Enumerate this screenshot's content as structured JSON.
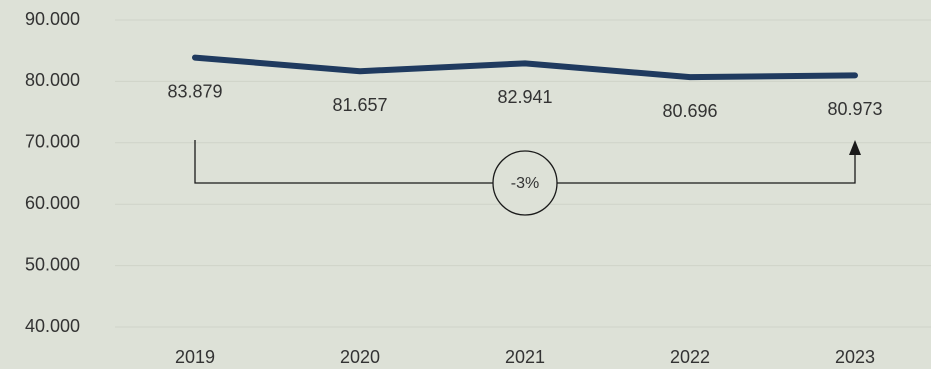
{
  "chart_data": {
    "type": "line",
    "title": "",
    "xlabel": "",
    "ylabel": "",
    "categories": [
      "2019",
      "2020",
      "2021",
      "2022",
      "2023"
    ],
    "series": [
      {
        "values": [
          83879,
          81657,
          82941,
          80696,
          80973
        ]
      }
    ],
    "data_labels": [
      "83.879",
      "81.657",
      "82.941",
      "80.696",
      "80.973"
    ],
    "y_ticks": [
      40000,
      50000,
      60000,
      70000,
      80000,
      90000
    ],
    "y_tick_labels": [
      "40.000",
      "50.000",
      "60.000",
      "70.000",
      "80.000",
      "90.000"
    ],
    "ylim": [
      40000,
      90000
    ],
    "grid": true,
    "legend": "none",
    "annotation": {
      "from": "2019",
      "to": "2023",
      "label": "-3%"
    },
    "colors": {
      "line": "#1f3a5f",
      "grid": "#cfd3c8",
      "background": "#dde1d7",
      "text": "#333333",
      "annotation": "#1a1a1a"
    }
  }
}
